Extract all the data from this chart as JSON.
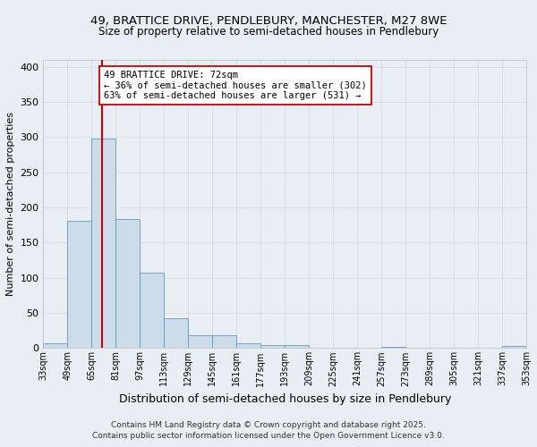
{
  "title_line1": "49, BRATTICE DRIVE, PENDLEBURY, MANCHESTER, M27 8WE",
  "title_line2": "Size of property relative to semi-detached houses in Pendlebury",
  "xlabel": "Distribution of semi-detached houses by size in Pendlebury",
  "ylabel": "Number of semi-detached properties",
  "footer_line1": "Contains HM Land Registry data © Crown copyright and database right 2025.",
  "footer_line2": "Contains public sector information licensed under the Open Government Licence v3.0.",
  "annotation_line1": "49 BRATTICE DRIVE: 72sqm",
  "annotation_line2": "← 36% of semi-detached houses are smaller (302)",
  "annotation_line3": "63% of semi-detached houses are larger (531) →",
  "property_size_sqm": 72,
  "bar_color": "#ccdce8",
  "bar_edge_color": "#6699bb",
  "red_line_color": "#cc0000",
  "grid_color": "#d0d8e0",
  "background_color": "#e8eef4",
  "fig_background_color": "#e8eef4",
  "bins": [
    33,
    49,
    65,
    81,
    97,
    113,
    129,
    145,
    161,
    177,
    193,
    209,
    225,
    241,
    257,
    273,
    289,
    305,
    321,
    337,
    353
  ],
  "bin_labels": [
    "33sqm",
    "49sqm",
    "65sqm",
    "81sqm",
    "97sqm",
    "113sqm",
    "129sqm",
    "145sqm",
    "161sqm",
    "177sqm",
    "193sqm",
    "209sqm",
    "225sqm",
    "241sqm",
    "257sqm",
    "273sqm",
    "289sqm",
    "305sqm",
    "321sqm",
    "337sqm",
    "353sqm"
  ],
  "values": [
    7,
    181,
    298,
    184,
    107,
    43,
    18,
    18,
    7,
    5,
    4,
    0,
    0,
    0,
    2,
    0,
    0,
    0,
    0,
    3
  ],
  "ylim": [
    0,
    410
  ],
  "yticks": [
    0,
    50,
    100,
    150,
    200,
    250,
    300,
    350,
    400
  ]
}
